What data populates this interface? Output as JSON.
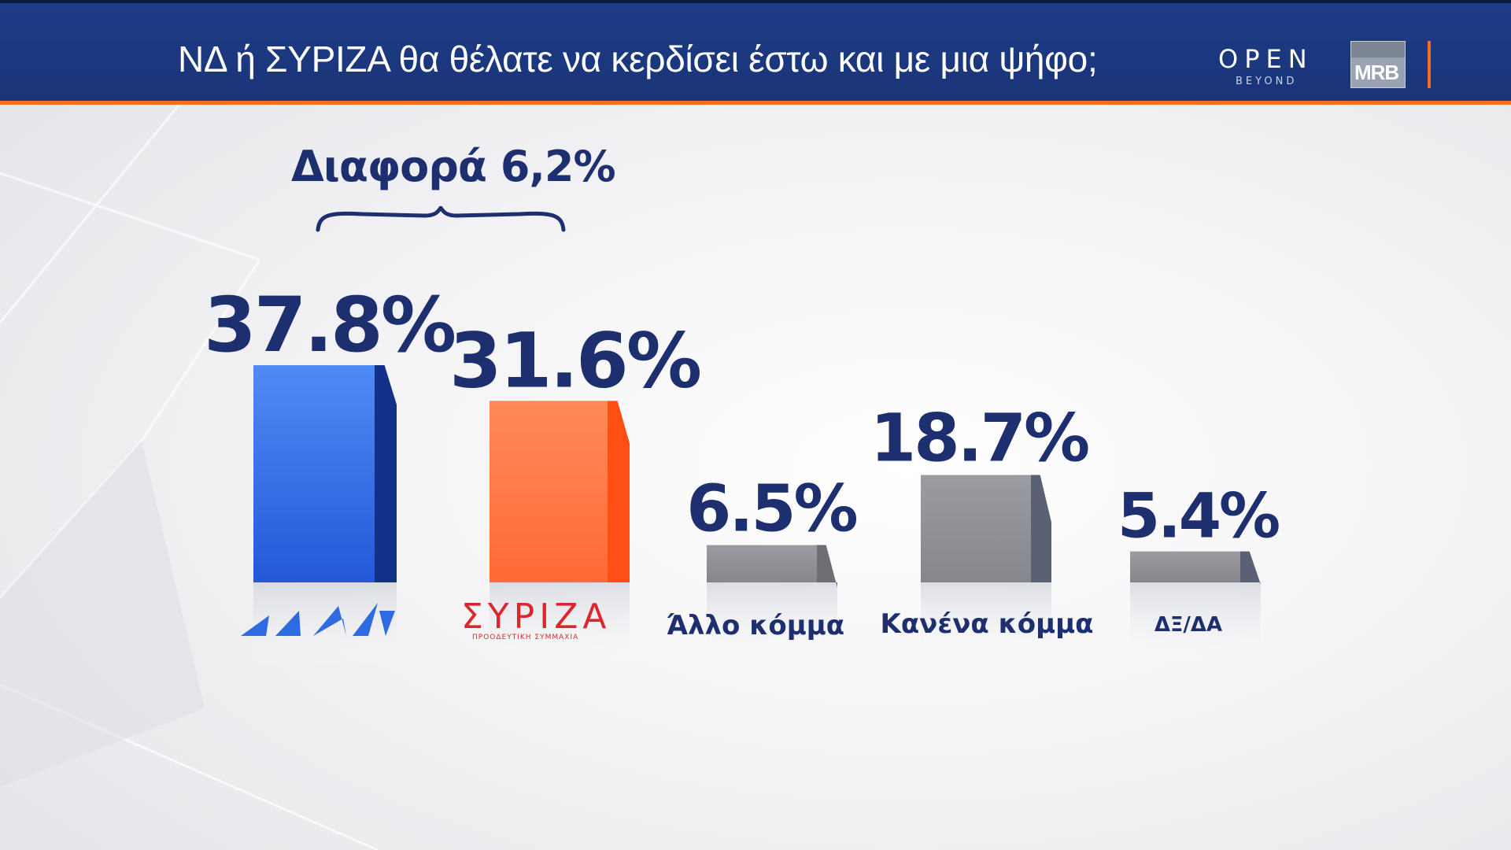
{
  "header": {
    "title": "ΝΔ  ή ΣΥΡΙΖΑ θα θέλατε να κερδίσει έστω και με μια ψήφο;",
    "logos": {
      "open": "OPEN",
      "open_sub": "BEYOND",
      "mrb": "MRB"
    }
  },
  "annotation": {
    "difference": "Διαφορά 6,2%"
  },
  "colors": {
    "header_bg": "#1d3c86",
    "accent_orange": "#f36d21",
    "label_navy": "#1e2f70",
    "nd_blue": "#2f6be0",
    "syriza_orange": "#ff6e3a",
    "grey": "#8a8c91"
  },
  "chart_data": {
    "type": "bar",
    "categories": [
      "ΝΔ",
      "ΣΥΡΙΖΑ",
      "Άλλο κόμμα",
      "Κανένα κόμμα",
      "ΔΞ/ΔΑ"
    ],
    "category_labels": {
      "syriza_logo": "ΣΥΡΙΖΑ",
      "syriza_logo_sub": "ΠΡΟΟΔΕΥΤΙΚΗ ΣΥΜΜΑΧΙΑ",
      "allo": "Άλλο κόμμα",
      "kanena": "Κανένα κόμμα",
      "dxda": "ΔΞ/ΔΑ"
    },
    "values": [
      37.8,
      31.6,
      6.5,
      18.7,
      5.4
    ],
    "value_labels": [
      "37.8%",
      "31.6%",
      "6.5%",
      "18.7%",
      "5.4%"
    ],
    "unit": "%",
    "bar_colors": [
      "#2f6be0",
      "#ff6e3a",
      "#8a8c91",
      "#8a8c91",
      "#8a8c91"
    ],
    "grid": false,
    "legend": "none"
  }
}
